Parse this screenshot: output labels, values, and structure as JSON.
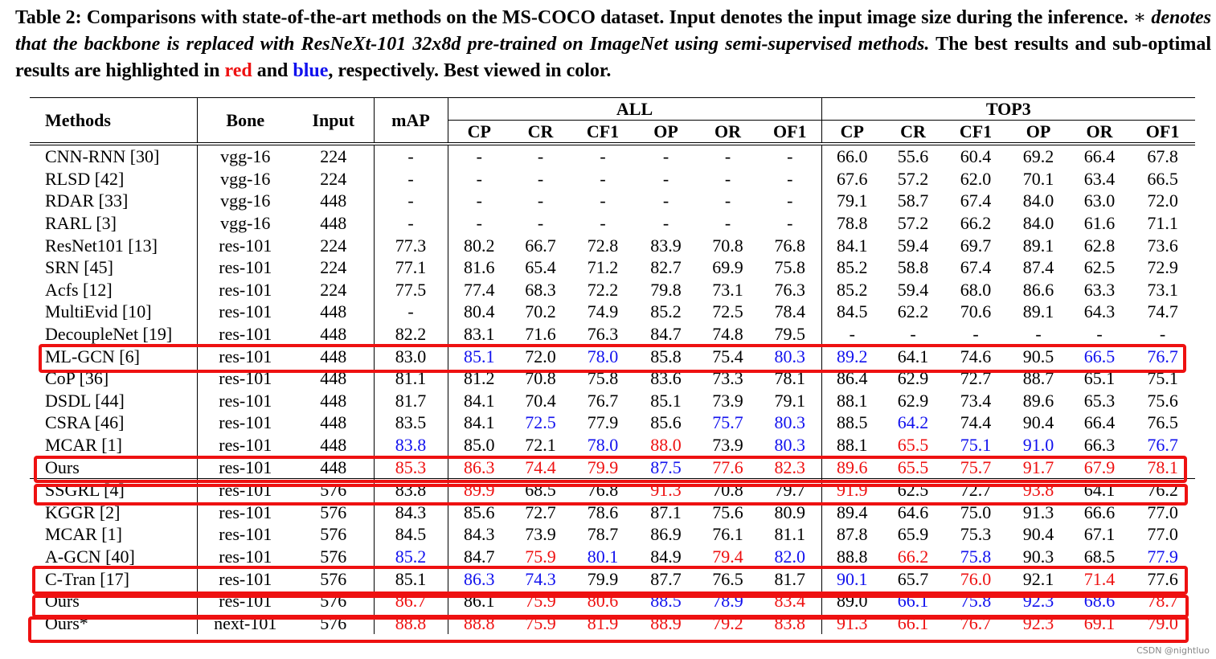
{
  "caption": {
    "label": "Table 2:",
    "part1": " Comparisons with state-of-the-art methods on the MS-COCO dataset. Input denotes the input image size during the inference. ",
    "star": "∗",
    "italic": " denotes that the backbone is replaced with ResNeXt-101 32x8d pre-trained on ImageNet using semi-supervised methods.",
    "part2": " The best results and sub-optimal results are highlighted in ",
    "red_word": "red",
    "and": " and ",
    "blue_word": "blue",
    "part3": ", respectively. Best viewed in color."
  },
  "headers": {
    "methods": "Methods",
    "bone": "Bone",
    "input": "Input",
    "map": "mAP",
    "all": "ALL",
    "top3": "TOP3",
    "sub": [
      "CP",
      "CR",
      "CF1",
      "OP",
      "OR",
      "OF1",
      "CP",
      "CR",
      "CF1",
      "OP",
      "OR",
      "OF1"
    ]
  },
  "colors": {
    "best": "#ee1111",
    "second": "#1111ee",
    "box": "#ee1111"
  },
  "rows": [
    {
      "method": "CNN-RNN [30]",
      "bone": "vgg-16",
      "input": "224",
      "map": "-",
      "vals": [
        "-",
        "-",
        "-",
        "-",
        "-",
        "-",
        "66.0",
        "55.6",
        "60.4",
        "69.2",
        "66.4",
        "67.8"
      ],
      "hl": [
        "",
        "",
        "",
        "",
        "",
        "",
        "",
        "",
        "",
        "",
        "",
        "",
        ""
      ]
    },
    {
      "method": "RLSD [42]",
      "bone": "vgg-16",
      "input": "224",
      "map": "-",
      "vals": [
        "-",
        "-",
        "-",
        "-",
        "-",
        "-",
        "67.6",
        "57.2",
        "62.0",
        "70.1",
        "63.4",
        "66.5"
      ],
      "hl": [
        "",
        "",
        "",
        "",
        "",
        "",
        "",
        "",
        "",
        "",
        "",
        "",
        ""
      ]
    },
    {
      "method": "RDAR [33]",
      "bone": "vgg-16",
      "input": "448",
      "map": "-",
      "vals": [
        "-",
        "-",
        "-",
        "-",
        "-",
        "-",
        "79.1",
        "58.7",
        "67.4",
        "84.0",
        "63.0",
        "72.0"
      ],
      "hl": [
        "",
        "",
        "",
        "",
        "",
        "",
        "",
        "",
        "",
        "",
        "",
        "",
        ""
      ]
    },
    {
      "method": "RARL [3]",
      "bone": "vgg-16",
      "input": "448",
      "map": "-",
      "vals": [
        "-",
        "-",
        "-",
        "-",
        "-",
        "-",
        "78.8",
        "57.2",
        "66.2",
        "84.0",
        "61.6",
        "71.1"
      ],
      "hl": [
        "",
        "",
        "",
        "",
        "",
        "",
        "",
        "",
        "",
        "",
        "",
        "",
        ""
      ]
    },
    {
      "method": "ResNet101 [13]",
      "bone": "res-101",
      "input": "224",
      "map": "77.3",
      "vals": [
        "80.2",
        "66.7",
        "72.8",
        "83.9",
        "70.8",
        "76.8",
        "84.1",
        "59.4",
        "69.7",
        "89.1",
        "62.8",
        "73.6"
      ],
      "hl": [
        "",
        "",
        "",
        "",
        "",
        "",
        "",
        "",
        "",
        "",
        "",
        "",
        ""
      ]
    },
    {
      "method": "SRN [45]",
      "bone": "res-101",
      "input": "224",
      "map": "77.1",
      "vals": [
        "81.6",
        "65.4",
        "71.2",
        "82.7",
        "69.9",
        "75.8",
        "85.2",
        "58.8",
        "67.4",
        "87.4",
        "62.5",
        "72.9"
      ],
      "hl": [
        "",
        "",
        "",
        "",
        "",
        "",
        "",
        "",
        "",
        "",
        "",
        "",
        ""
      ]
    },
    {
      "method": "Acfs [12]",
      "bone": "res-101",
      "input": "224",
      "map": "77.5",
      "vals": [
        "77.4",
        "68.3",
        "72.2",
        "79.8",
        "73.1",
        "76.3",
        "85.2",
        "59.4",
        "68.0",
        "86.6",
        "63.3",
        "73.1"
      ],
      "hl": [
        "",
        "",
        "",
        "",
        "",
        "",
        "",
        "",
        "",
        "",
        "",
        "",
        ""
      ]
    },
    {
      "method": "MultiEvid [10]",
      "bone": "res-101",
      "input": "448",
      "map": "-",
      "vals": [
        "80.4",
        "70.2",
        "74.9",
        "85.2",
        "72.5",
        "78.4",
        "84.5",
        "62.2",
        "70.6",
        "89.1",
        "64.3",
        "74.7"
      ],
      "hl": [
        "",
        "",
        "",
        "",
        "",
        "",
        "",
        "",
        "",
        "",
        "",
        "",
        ""
      ]
    },
    {
      "method": "DecoupleNet [19]",
      "bone": "res-101",
      "input": "448",
      "map": "82.2",
      "vals": [
        "83.1",
        "71.6",
        "76.3",
        "84.7",
        "74.8",
        "79.5",
        "-",
        "-",
        "-",
        "-",
        "-",
        "-"
      ],
      "hl": [
        "",
        "",
        "",
        "",
        "",
        "",
        "",
        "",
        "",
        "",
        "",
        "",
        ""
      ]
    },
    {
      "method": "ML-GCN [6]",
      "bone": "res-101",
      "input": "448",
      "map": "83.0",
      "vals": [
        "85.1",
        "72.0",
        "78.0",
        "85.8",
        "75.4",
        "80.3",
        "89.2",
        "64.1",
        "74.6",
        "90.5",
        "66.5",
        "76.7"
      ],
      "hl": [
        "",
        "b",
        "",
        "b",
        "",
        "",
        "b",
        "b",
        "",
        "",
        "",
        "b",
        "b"
      ]
    },
    {
      "method": "CoP [36]",
      "bone": "res-101",
      "input": "448",
      "map": "81.1",
      "vals": [
        "81.2",
        "70.8",
        "75.8",
        "83.6",
        "73.3",
        "78.1",
        "86.4",
        "62.9",
        "72.7",
        "88.7",
        "65.1",
        "75.1"
      ],
      "hl": [
        "",
        "",
        "",
        "",
        "",
        "",
        "",
        "",
        "",
        "",
        "",
        "",
        ""
      ]
    },
    {
      "method": "DSDL [44]",
      "bone": "res-101",
      "input": "448",
      "map": "81.7",
      "vals": [
        "84.1",
        "70.4",
        "76.7",
        "85.1",
        "73.9",
        "79.1",
        "88.1",
        "62.9",
        "73.4",
        "89.6",
        "65.3",
        "75.6"
      ],
      "hl": [
        "",
        "",
        "",
        "",
        "",
        "",
        "",
        "",
        "",
        "",
        "",
        "",
        ""
      ]
    },
    {
      "method": "CSRA [46]",
      "bone": "res-101",
      "input": "448",
      "map": "83.5",
      "vals": [
        "84.1",
        "72.5",
        "77.9",
        "85.6",
        "75.7",
        "80.3",
        "88.5",
        "64.2",
        "74.4",
        "90.4",
        "66.4",
        "76.5"
      ],
      "hl": [
        "",
        "",
        "b",
        "",
        "",
        "b",
        "b",
        "",
        "b",
        "",
        "",
        "",
        ""
      ]
    },
    {
      "method": "MCAR [1]",
      "bone": "res-101",
      "input": "448",
      "map": "83.8",
      "vals": [
        "85.0",
        "72.1",
        "78.0",
        "88.0",
        "73.9",
        "80.3",
        "88.1",
        "65.5",
        "75.1",
        "91.0",
        "66.3",
        "76.7"
      ],
      "hl": [
        "b",
        "",
        "",
        "b",
        "r",
        "",
        "b",
        "",
        "r",
        "b",
        "b",
        "",
        "b"
      ]
    },
    {
      "method": "Ours",
      "bone": "res-101",
      "input": "448",
      "map": "85.3",
      "vals": [
        "86.3",
        "74.4",
        "79.9",
        "87.5",
        "77.6",
        "82.3",
        "89.6",
        "65.5",
        "75.7",
        "91.7",
        "67.9",
        "78.1"
      ],
      "hl": [
        "r",
        "r",
        "r",
        "r",
        "b",
        "r",
        "r",
        "r",
        "r",
        "r",
        "r",
        "r",
        "r"
      ]
    },
    {
      "method": "SSGRL [4]",
      "bone": "res-101",
      "input": "576",
      "map": "83.8",
      "vals": [
        "89.9",
        "68.5",
        "76.8",
        "91.3",
        "70.8",
        "79.7",
        "91.9",
        "62.5",
        "72.7",
        "93.8",
        "64.1",
        "76.2"
      ],
      "hl": [
        "",
        "r",
        "",
        "",
        "r",
        "",
        "",
        "r",
        "",
        "",
        "r",
        "",
        ""
      ]
    },
    {
      "method": "KGGR [2]",
      "bone": "res-101",
      "input": "576",
      "map": "84.3",
      "vals": [
        "85.6",
        "72.7",
        "78.6",
        "87.1",
        "75.6",
        "80.9",
        "89.4",
        "64.6",
        "75.0",
        "91.3",
        "66.6",
        "77.0"
      ],
      "hl": [
        "",
        "",
        "",
        "",
        "",
        "",
        "",
        "",
        "",
        "",
        "",
        "",
        ""
      ]
    },
    {
      "method": "MCAR [1]",
      "bone": "res-101",
      "input": "576",
      "map": "84.5",
      "vals": [
        "84.3",
        "73.9",
        "78.7",
        "86.9",
        "76.1",
        "81.1",
        "87.8",
        "65.9",
        "75.3",
        "90.4",
        "67.1",
        "77.0"
      ],
      "hl": [
        "",
        "",
        "",
        "",
        "",
        "",
        "",
        "",
        "",
        "",
        "",
        "",
        ""
      ]
    },
    {
      "method": "A-GCN [40]",
      "bone": "res-101",
      "input": "576",
      "map": "85.2",
      "vals": [
        "84.7",
        "75.9",
        "80.1",
        "84.9",
        "79.4",
        "82.0",
        "88.8",
        "66.2",
        "75.8",
        "90.3",
        "68.5",
        "77.9"
      ],
      "hl": [
        "b",
        "",
        "r",
        "b",
        "",
        "r",
        "b",
        "",
        "r",
        "b",
        "",
        "",
        "b"
      ]
    },
    {
      "method": "C-Tran [17]",
      "bone": "res-101",
      "input": "576",
      "map": "85.1",
      "vals": [
        "86.3",
        "74.3",
        "79.9",
        "87.7",
        "76.5",
        "81.7",
        "90.1",
        "65.7",
        "76.0",
        "92.1",
        "71.4",
        "77.6"
      ],
      "hl": [
        "",
        "b",
        "b",
        "",
        "",
        "",
        "",
        "b",
        "",
        "r",
        "",
        "r",
        ""
      ]
    },
    {
      "method": "Ours",
      "bone": "res-101",
      "input": "576",
      "map": "86.7",
      "vals": [
        "86.1",
        "75.9",
        "80.6",
        "88.5",
        "78.9",
        "83.4",
        "89.0",
        "66.1",
        "75.8",
        "92.3",
        "68.6",
        "78.7"
      ],
      "hl": [
        "r",
        "",
        "r",
        "r",
        "b",
        "b",
        "r",
        "",
        "b",
        "b",
        "b",
        "b",
        "r"
      ]
    },
    {
      "method": "Ours*",
      "bone": "next-101",
      "input": "576",
      "map": "88.8",
      "vals": [
        "88.8",
        "75.9",
        "81.9",
        "88.9",
        "79.2",
        "83.8",
        "91.3",
        "66.1",
        "76.7",
        "92.3",
        "69.1",
        "79.0"
      ],
      "hl": [
        "r",
        "r",
        "r",
        "r",
        "r",
        "r",
        "r",
        "r",
        "r",
        "r",
        "r",
        "r",
        "r"
      ]
    }
  ],
  "watermark": "CSDN @nightluo"
}
